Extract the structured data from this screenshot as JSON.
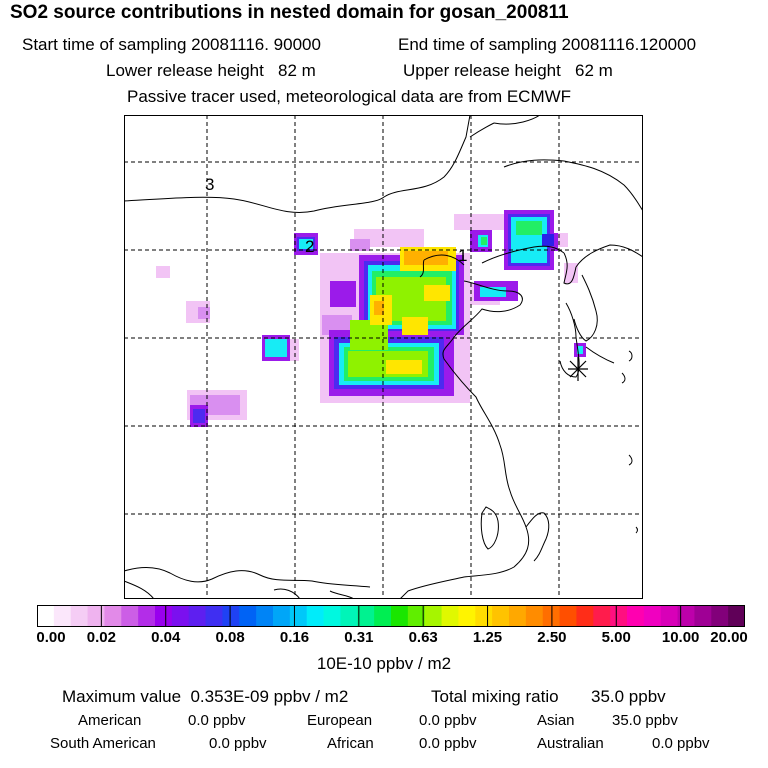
{
  "header": {
    "title": "SO2 source contributions in nested domain for gosan_200811",
    "start_label": "Start time of sampling 20081116. 90000",
    "end_label": "End time of sampling 20081116.120000",
    "lower_label": "Lower release height   82 m",
    "upper_label": "Upper release height   62 m",
    "tracer_label": "Passive tracer used, meteorological data are from ECMWF"
  },
  "map": {
    "region_labels": [
      "3",
      "2",
      "1"
    ],
    "receptor_marker": "asterisk-icon",
    "grid_lines": "dashed"
  },
  "colorbar": {
    "tick_labels": [
      "0.00",
      "0.02",
      "0.04",
      "0.08",
      "0.16",
      "0.31",
      "0.63",
      "1.25",
      "2.50",
      "5.00",
      "10.00",
      "20.00"
    ],
    "colors": [
      "#ffffff",
      "#fbe7fb",
      "#f5cdf5",
      "#efb3ef",
      "#e28ae8",
      "#cc5ee6",
      "#b32de8",
      "#9900ee",
      "#7b10ef",
      "#5e1ff0",
      "#3f2ff2",
      "#1f42f4",
      "#0063f5",
      "#0084f6",
      "#00a6f8",
      "#00c8f9",
      "#00ecfa",
      "#00f8e0",
      "#00f5b8",
      "#00f290",
      "#00ee52",
      "#1ae600",
      "#60ee00",
      "#a6f500",
      "#e0f800",
      "#fff400",
      "#ffdd00",
      "#ffc300",
      "#ffa800",
      "#ff8c00",
      "#ff6e00",
      "#ff4f00",
      "#ff2d18",
      "#ff1c4c",
      "#ff0f80",
      "#ff00b0",
      "#f000c0",
      "#d800b8",
      "#bd00ab",
      "#9f0095",
      "#82007a",
      "#600058"
    ],
    "unit_label": "10E-10 ppbv / m2"
  },
  "stats": {
    "max_label": "Maximum value  0.353E-09 ppbv / m2",
    "total_label": "Total mixing ratio",
    "total_value": "35.0 ppbv",
    "american_label": "American",
    "american_value": "0.0 ppbv",
    "european_label": "European",
    "european_value": "0.0 ppbv",
    "asian_label": "Asian",
    "asian_value": "35.0 ppbv",
    "south_american_label": "South American",
    "south_american_value": "0.0 ppbv",
    "african_label": "African",
    "african_value": "0.0 ppbv",
    "australian_label": "Australian",
    "australian_value": "0.0 ppbv"
  }
}
